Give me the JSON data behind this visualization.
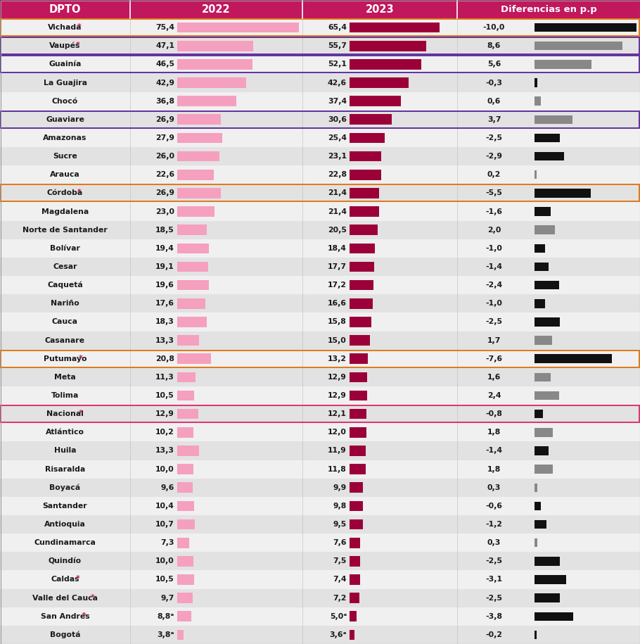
{
  "departments": [
    "Vichada*",
    "Vaupés*",
    "Guainía",
    "La Guajira",
    "Chocó",
    "Guaviare",
    "Amazonas",
    "Sucre",
    "Arauca",
    "Córdoba*",
    "Magdalena",
    "Norte de Santander",
    "Bolívar",
    "Cesar",
    "Caquetá",
    "Nariño",
    "Cauca",
    "Casanare",
    "Putumayo*",
    "Meta",
    "Tolima",
    "Nacional*",
    "Atlántico",
    "Huila",
    "Risaralda",
    "Boyacá",
    "Santander",
    "Antioquia",
    "Cundinamarca",
    "Quindío",
    "Caldas*",
    "Valle del Cauca*",
    "San Andrés*",
    "Bogotá"
  ],
  "val2022": [
    75.4,
    47.1,
    46.5,
    42.9,
    36.8,
    26.9,
    27.9,
    26.0,
    22.6,
    26.9,
    23.0,
    18.5,
    19.4,
    19.1,
    19.6,
    17.6,
    18.3,
    13.3,
    20.8,
    11.3,
    10.5,
    12.9,
    10.2,
    13.3,
    10.0,
    9.6,
    10.4,
    10.7,
    7.3,
    10.0,
    10.5,
    9.7,
    8.8,
    3.8
  ],
  "val2023": [
    65.4,
    55.7,
    52.1,
    42.6,
    37.4,
    30.6,
    25.4,
    23.1,
    22.8,
    21.4,
    21.4,
    20.5,
    18.4,
    17.7,
    17.2,
    16.6,
    15.8,
    15.0,
    13.2,
    12.9,
    12.9,
    12.1,
    12.0,
    11.9,
    11.8,
    9.9,
    9.8,
    9.5,
    7.6,
    7.5,
    7.4,
    7.2,
    5.0,
    3.6
  ],
  "diff": [
    -10.0,
    8.6,
    5.6,
    -0.3,
    0.6,
    3.7,
    -2.5,
    -2.9,
    0.2,
    -5.5,
    -1.6,
    2.0,
    -1.0,
    -1.4,
    -2.4,
    -1.0,
    -2.5,
    1.7,
    -7.6,
    1.6,
    2.4,
    -0.8,
    1.8,
    -1.4,
    1.8,
    0.3,
    -0.6,
    -1.2,
    0.3,
    -2.5,
    -3.1,
    -2.5,
    -3.8,
    -0.2
  ],
  "label2022": [
    "75,4",
    "47,1",
    "46,5",
    "42,9",
    "36,8",
    "26,9",
    "27,9",
    "26,0",
    "22,6",
    "26,9",
    "23,0",
    "18,5",
    "19,4",
    "19,1",
    "19,6",
    "17,6",
    "18,3",
    "13,3",
    "20,8",
    "11,3",
    "10,5",
    "12,9",
    "10,2",
    "13,3",
    "10,0",
    "9,6",
    "10,4",
    "10,7",
    "7,3",
    "10,0",
    "10,5",
    "9,7",
    "8,8ᵃ",
    "3,8ᵃ"
  ],
  "label2023": [
    "65,4",
    "55,7",
    "52,1",
    "42,6",
    "37,4",
    "30,6",
    "25,4",
    "23,1",
    "22,8",
    "21,4",
    "21,4",
    "20,5",
    "18,4",
    "17,7",
    "17,2",
    "16,6",
    "15,8",
    "15,0",
    "13,2",
    "12,9",
    "12,9",
    "12,1",
    "12,0",
    "11,9",
    "11,8",
    "9,9",
    "9,8",
    "9,5",
    "7,6",
    "7,5",
    "7,4",
    "7,2",
    "5,0ᵃ",
    "3,6ᵃ"
  ],
  "label_diff": [
    "-10,0",
    "8,6",
    "5,6",
    "-0,3",
    "0,6",
    "3,7",
    "-2,5",
    "-2,9",
    "0,2",
    "-5,5",
    "-1,6",
    "2,0",
    "-1,0",
    "-1,4",
    "-2,4",
    "-1,0",
    "-2,5",
    "1,7",
    "-7,6",
    "1,6",
    "2,4",
    "-0,8",
    "1,8",
    "-1,4",
    "1,8",
    "0,3",
    "-0,6",
    "-1,2",
    "0,3",
    "-2,5",
    "-3,1",
    "-2,5",
    "-3,8",
    "-0,2"
  ],
  "header_bg": "#c0175d",
  "header_text": "#ffffff",
  "bar2022_color": "#f5a0bf",
  "bar2023_color": "#9b0038",
  "diff_neg_color": "#111111",
  "diff_pos_color": "#888888",
  "row_color_odd": "#f0f0f0",
  "row_color_even": "#e2e2e2",
  "outline_orange": [
    "Vichada*",
    "Córdoba*",
    "Putumayo*"
  ],
  "outline_purple": [
    "Vaupés*",
    "Guainía",
    "Guaviare"
  ],
  "outline_pink": [
    "Nacional*"
  ],
  "star_color": "#c0175d",
  "fig_width": 9.1,
  "fig_height": 9.15
}
